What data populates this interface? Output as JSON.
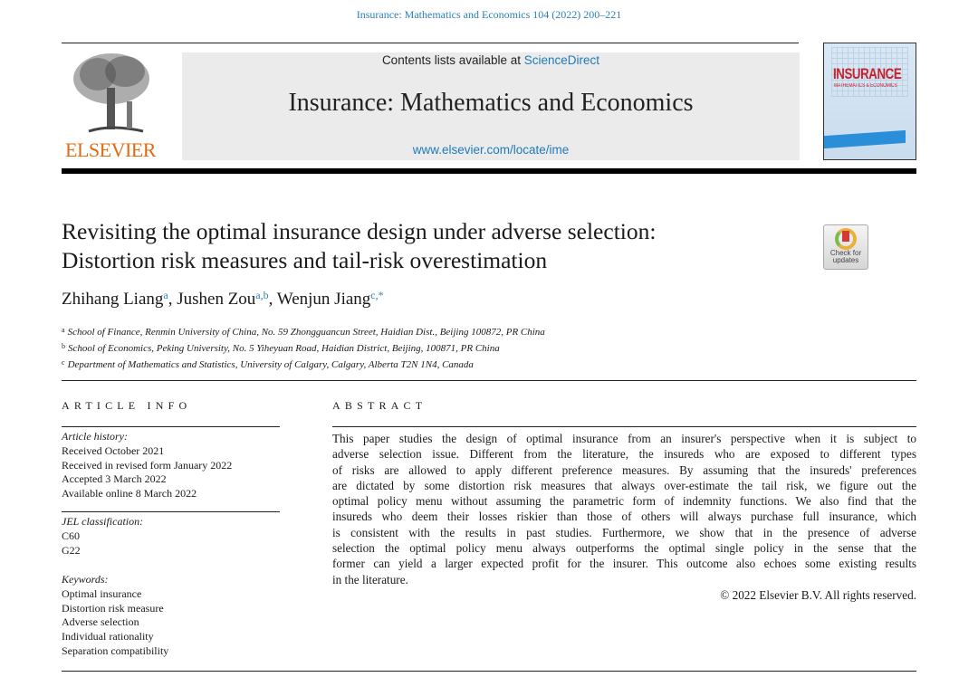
{
  "running_header": "Insurance: Mathematics and Economics 104 (2022) 200–221",
  "masthead": {
    "publisher_logo": "ELSEVIER",
    "contents_prefix": "Contents lists available at ",
    "contents_link": "ScienceDirect",
    "journal_title": "Insurance: Mathematics and Economics",
    "journal_url": "www.elsevier.com/locate/ime",
    "cover_title": "INSURANCE",
    "cover_subtitle": "MATHEMATICS & ECONOMICS"
  },
  "check_for_updates": {
    "line1": "Check for",
    "line2": "updates"
  },
  "article": {
    "title_lines": [
      "Revisiting the optimal insurance design under adverse selection:",
      "Distortion risk measures and tail-risk overestimation"
    ],
    "authors": [
      {
        "name": "Zhihang Liang",
        "sup": "a"
      },
      {
        "name": "Jushen Zou",
        "sup": "a,b"
      },
      {
        "name": "Wenjun Jiang",
        "sup": "c,*"
      }
    ],
    "affiliations": [
      {
        "mark": "a",
        "text": "School of Finance, Renmin University of China, No. 59 Zhongguancun Street, Haidian Dist., Beijing 100872, PR China"
      },
      {
        "mark": "b",
        "text": "School of Economics, Peking University, No. 5 Yiheyuan Road, Haidian District, Beijing, 100871, PR China"
      },
      {
        "mark": "c",
        "text": "Department of Mathematics and Statistics, University of Calgary, Calgary, Alberta T2N 1N4, Canada"
      }
    ]
  },
  "article_info": {
    "heading": "ARTICLE INFO",
    "history_label": "Article history:",
    "history": [
      "Received October 2021",
      "Received in revised form January 2022",
      "Accepted 3 March 2022",
      "Available online 8 March 2022"
    ],
    "jel_label": "JEL classification:",
    "jel": [
      "C60",
      "G22"
    ],
    "keywords_label": "Keywords:",
    "keywords": [
      "Optimal insurance",
      "Distortion risk measure",
      "Adverse selection",
      "Individual rationality",
      "Separation compatibility"
    ]
  },
  "abstract": {
    "heading": "ABSTRACT",
    "lines": [
      "This paper studies the design of optimal insurance from an insurer's perspective when it is subject to",
      "adverse selection issue. Different from the literature, the insureds who are exposed to different types",
      "of risks are allowed to apply different preference measures. By assuming that the insureds' preferences",
      "are dictated by some distortion risk measures that always over-estimate the tail risk, we figure out the",
      "optimal policy menu without assuming the parametric form of indemnity functions. We also find that the",
      "insureds who deem their losses riskier than those of others will always purchase full insurance, which",
      "is consistent with the results in past studies. Furthermore, we show that in the presence of adverse",
      "selection the optimal policy menu always outperforms the optimal single policy in the sense that the",
      "former can yield a larger expected profit for the insurer. This outcome also echoes some existing results",
      "in the literature."
    ],
    "copyright": "© 2022 Elsevier B.V. All rights reserved."
  }
}
